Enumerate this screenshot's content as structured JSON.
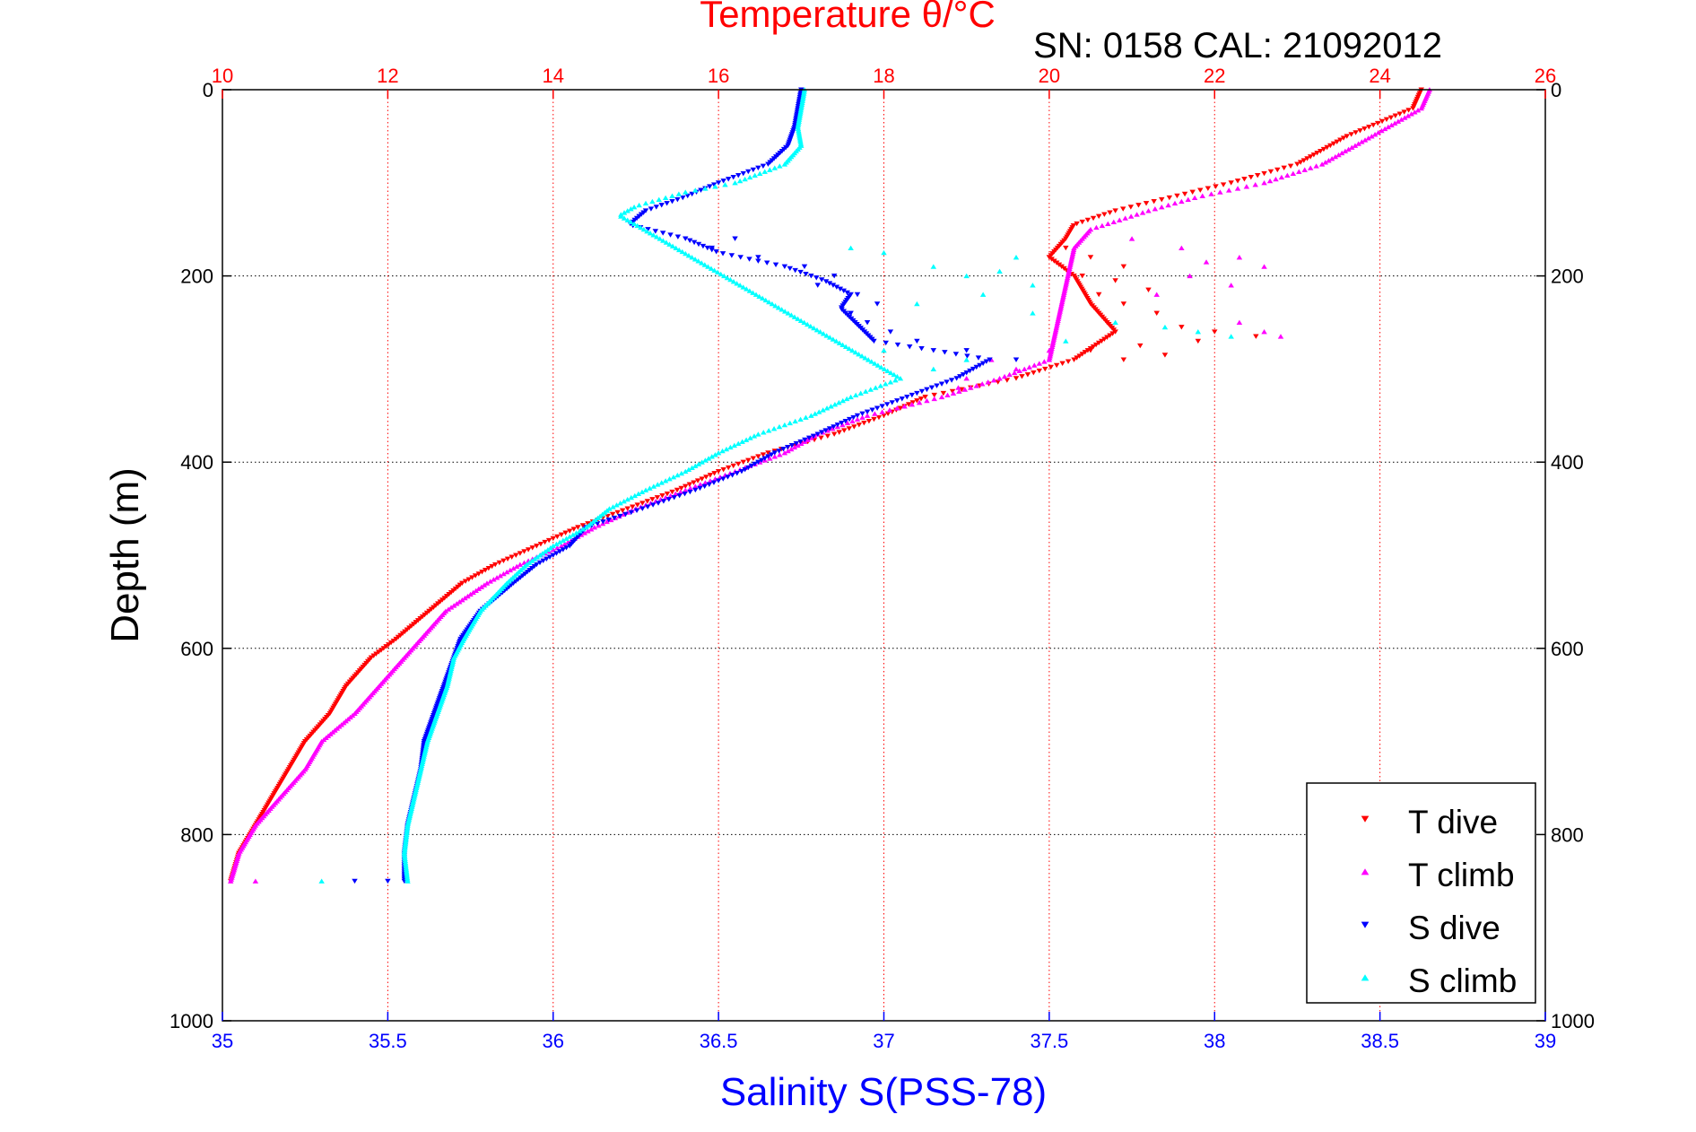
{
  "chart_data": {
    "type": "scatter",
    "title": "Temperature θ/°C",
    "subtitle": "SN: 0158  CAL: 21092012",
    "ylabel": "Depth (m)",
    "xlabel_bottom": "Salinity S(PSS-78)",
    "xlabel_top": "Temperature θ/°C",
    "y_axis": {
      "range": [
        0,
        1000
      ],
      "reversed": true,
      "ticks": [
        0,
        200,
        400,
        600,
        800,
        1000
      ],
      "grid": true
    },
    "x_bottom_axis": {
      "range": [
        35,
        39
      ],
      "ticks": [
        35,
        35.5,
        36,
        36.5,
        37,
        37.5,
        38,
        38.5,
        39
      ],
      "color": "#0000ff"
    },
    "x_top_axis": {
      "range": [
        10,
        26
      ],
      "ticks": [
        10,
        12,
        14,
        16,
        18,
        20,
        22,
        24,
        26
      ],
      "color": "#ff0000",
      "grid": true
    },
    "legend": {
      "placement": "bottom-right",
      "entries": [
        {
          "label": "T dive",
          "color": "#ff0000",
          "marker": "triangle-down"
        },
        {
          "label": "T climb",
          "color": "#ff00ff",
          "marker": "triangle-up"
        },
        {
          "label": "S dive",
          "color": "#0000ff",
          "marker": "triangle-down"
        },
        {
          "label": "S climb",
          "color": "#00ffff",
          "marker": "triangle-up"
        }
      ]
    },
    "series": [
      {
        "name": "T dive",
        "axis": "temperature",
        "color": "#ff0000",
        "marker": "triangle-down",
        "profile": [
          [
            0,
            24.5
          ],
          [
            20,
            24.4
          ],
          [
            50,
            23.6
          ],
          [
            80,
            23.0
          ],
          [
            100,
            22.2
          ],
          [
            115,
            21.5
          ],
          [
            130,
            20.8
          ],
          [
            145,
            20.3
          ],
          [
            160,
            20.2
          ],
          [
            180,
            20.0
          ],
          [
            200,
            20.3
          ],
          [
            230,
            20.5
          ],
          [
            260,
            20.8
          ],
          [
            290,
            20.3
          ],
          [
            310,
            19.6
          ],
          [
            330,
            18.5
          ],
          [
            350,
            18.0
          ],
          [
            370,
            17.4
          ],
          [
            390,
            16.6
          ],
          [
            410,
            16.0
          ],
          [
            430,
            15.5
          ],
          [
            450,
            14.9
          ],
          [
            470,
            14.3
          ],
          [
            490,
            13.8
          ],
          [
            510,
            13.3
          ],
          [
            530,
            12.9
          ],
          [
            560,
            12.5
          ],
          [
            590,
            12.1
          ],
          [
            610,
            11.8
          ],
          [
            640,
            11.5
          ],
          [
            670,
            11.3
          ],
          [
            700,
            11.0
          ],
          [
            730,
            10.8
          ],
          [
            760,
            10.6
          ],
          [
            790,
            10.4
          ],
          [
            820,
            10.2
          ],
          [
            850,
            10.1
          ]
        ],
        "scatter": [
          [
            170,
            20.2
          ],
          [
            180,
            20.5
          ],
          [
            190,
            20.9
          ],
          [
            200,
            20.4
          ],
          [
            205,
            20.8
          ],
          [
            215,
            21.2
          ],
          [
            220,
            20.6
          ],
          [
            230,
            20.9
          ],
          [
            240,
            21.3
          ],
          [
            250,
            20.7
          ],
          [
            255,
            21.6
          ],
          [
            260,
            22.0
          ],
          [
            265,
            22.5
          ],
          [
            270,
            21.8
          ],
          [
            275,
            21.1
          ],
          [
            280,
            20.5
          ],
          [
            285,
            21.4
          ],
          [
            290,
            20.9
          ]
        ]
      },
      {
        "name": "T climb",
        "axis": "temperature",
        "color": "#ff00ff",
        "marker": "triangle-up",
        "profile": [
          [
            0,
            24.6
          ],
          [
            20,
            24.5
          ],
          [
            50,
            23.9
          ],
          [
            80,
            23.3
          ],
          [
            100,
            22.6
          ],
          [
            115,
            21.8
          ],
          [
            130,
            21.2
          ],
          [
            150,
            20.5
          ],
          [
            170,
            20.3
          ],
          [
            290,
            20.0
          ],
          [
            310,
            19.4
          ],
          [
            330,
            18.7
          ],
          [
            350,
            17.8
          ],
          [
            370,
            17.2
          ],
          [
            390,
            16.8
          ],
          [
            410,
            16.2
          ],
          [
            430,
            15.6
          ],
          [
            450,
            15.0
          ],
          [
            470,
            14.5
          ],
          [
            490,
            14.1
          ],
          [
            510,
            13.6
          ],
          [
            530,
            13.2
          ],
          [
            560,
            12.7
          ],
          [
            590,
            12.4
          ],
          [
            610,
            12.2
          ],
          [
            640,
            11.9
          ],
          [
            670,
            11.6
          ],
          [
            700,
            11.2
          ],
          [
            730,
            11.0
          ],
          [
            760,
            10.7
          ],
          [
            790,
            10.4
          ],
          [
            820,
            10.2
          ],
          [
            850,
            10.1
          ]
        ],
        "scatter": [
          [
            160,
            21.0
          ],
          [
            170,
            21.6
          ],
          [
            180,
            22.3
          ],
          [
            185,
            21.9
          ],
          [
            190,
            22.6
          ],
          [
            200,
            21.7
          ],
          [
            210,
            22.2
          ],
          [
            220,
            21.3
          ],
          [
            250,
            22.3
          ],
          [
            260,
            22.6
          ],
          [
            265,
            22.8
          ],
          [
            280,
            20.0
          ],
          [
            290,
            19.3
          ],
          [
            300,
            19.6
          ],
          [
            310,
            19.0
          ],
          [
            320,
            18.9
          ],
          [
            850,
            10.4
          ]
        ]
      },
      {
        "name": "S dive",
        "axis": "salinity",
        "color": "#0000ff",
        "marker": "triangle-down",
        "profile": [
          [
            0,
            36.75
          ],
          [
            20,
            36.74
          ],
          [
            40,
            36.73
          ],
          [
            60,
            36.71
          ],
          [
            80,
            36.65
          ],
          [
            100,
            36.5
          ],
          [
            115,
            36.4
          ],
          [
            130,
            36.28
          ],
          [
            145,
            36.23
          ],
          [
            160,
            36.4
          ],
          [
            175,
            36.5
          ],
          [
            190,
            36.7
          ],
          [
            205,
            36.82
          ],
          [
            220,
            36.9
          ],
          [
            235,
            36.87
          ],
          [
            270,
            36.97
          ],
          [
            280,
            37.15
          ],
          [
            290,
            37.32
          ],
          [
            310,
            37.22
          ],
          [
            330,
            37.07
          ],
          [
            350,
            36.92
          ],
          [
            370,
            36.8
          ],
          [
            390,
            36.67
          ],
          [
            410,
            36.57
          ],
          [
            430,
            36.43
          ],
          [
            450,
            36.27
          ],
          [
            470,
            36.1
          ],
          [
            490,
            36.05
          ],
          [
            510,
            35.95
          ],
          [
            530,
            35.88
          ],
          [
            560,
            35.78
          ],
          [
            590,
            35.72
          ],
          [
            610,
            35.7
          ],
          [
            640,
            35.67
          ],
          [
            670,
            35.64
          ],
          [
            700,
            35.61
          ],
          [
            730,
            35.6
          ],
          [
            760,
            35.58
          ],
          [
            790,
            35.56
          ],
          [
            820,
            35.55
          ],
          [
            850,
            35.55
          ]
        ],
        "scatter": [
          [
            160,
            36.55
          ],
          [
            170,
            36.48
          ],
          [
            180,
            36.62
          ],
          [
            190,
            36.76
          ],
          [
            200,
            36.85
          ],
          [
            210,
            36.8
          ],
          [
            220,
            36.92
          ],
          [
            230,
            36.98
          ],
          [
            240,
            36.9
          ],
          [
            250,
            36.95
          ],
          [
            260,
            37.02
          ],
          [
            270,
            37.1
          ],
          [
            280,
            37.25
          ],
          [
            290,
            37.4
          ],
          [
            850,
            35.4
          ],
          [
            850,
            35.5
          ]
        ]
      },
      {
        "name": "S climb",
        "axis": "salinity",
        "color": "#00ffff",
        "marker": "triangle-up",
        "profile": [
          [
            0,
            36.76
          ],
          [
            20,
            36.75
          ],
          [
            40,
            36.74
          ],
          [
            60,
            36.75
          ],
          [
            80,
            36.7
          ],
          [
            100,
            36.55
          ],
          [
            110,
            36.4
          ],
          [
            125,
            36.25
          ],
          [
            135,
            36.2
          ],
          [
            145,
            36.25
          ],
          [
            310,
            37.05
          ],
          [
            330,
            36.9
          ],
          [
            350,
            36.78
          ],
          [
            370,
            36.62
          ],
          [
            390,
            36.5
          ],
          [
            410,
            36.4
          ],
          [
            430,
            36.28
          ],
          [
            450,
            36.17
          ],
          [
            470,
            36.1
          ],
          [
            490,
            36.0
          ],
          [
            510,
            35.92
          ],
          [
            530,
            35.86
          ],
          [
            560,
            35.78
          ],
          [
            590,
            35.73
          ],
          [
            610,
            35.7
          ],
          [
            640,
            35.68
          ],
          [
            670,
            35.65
          ],
          [
            700,
            35.62
          ],
          [
            730,
            35.6
          ],
          [
            760,
            35.58
          ],
          [
            790,
            35.56
          ],
          [
            820,
            35.55
          ],
          [
            850,
            35.56
          ]
        ],
        "scatter": [
          [
            170,
            36.9
          ],
          [
            175,
            37.0
          ],
          [
            180,
            37.4
          ],
          [
            190,
            37.15
          ],
          [
            195,
            37.35
          ],
          [
            200,
            37.25
          ],
          [
            210,
            37.45
          ],
          [
            220,
            37.3
          ],
          [
            230,
            37.1
          ],
          [
            240,
            37.45
          ],
          [
            250,
            37.7
          ],
          [
            255,
            37.85
          ],
          [
            260,
            37.95
          ],
          [
            265,
            38.05
          ],
          [
            270,
            37.55
          ],
          [
            280,
            37.0
          ],
          [
            290,
            37.25
          ],
          [
            300,
            37.15
          ],
          [
            850,
            35.3
          ]
        ]
      }
    ]
  }
}
